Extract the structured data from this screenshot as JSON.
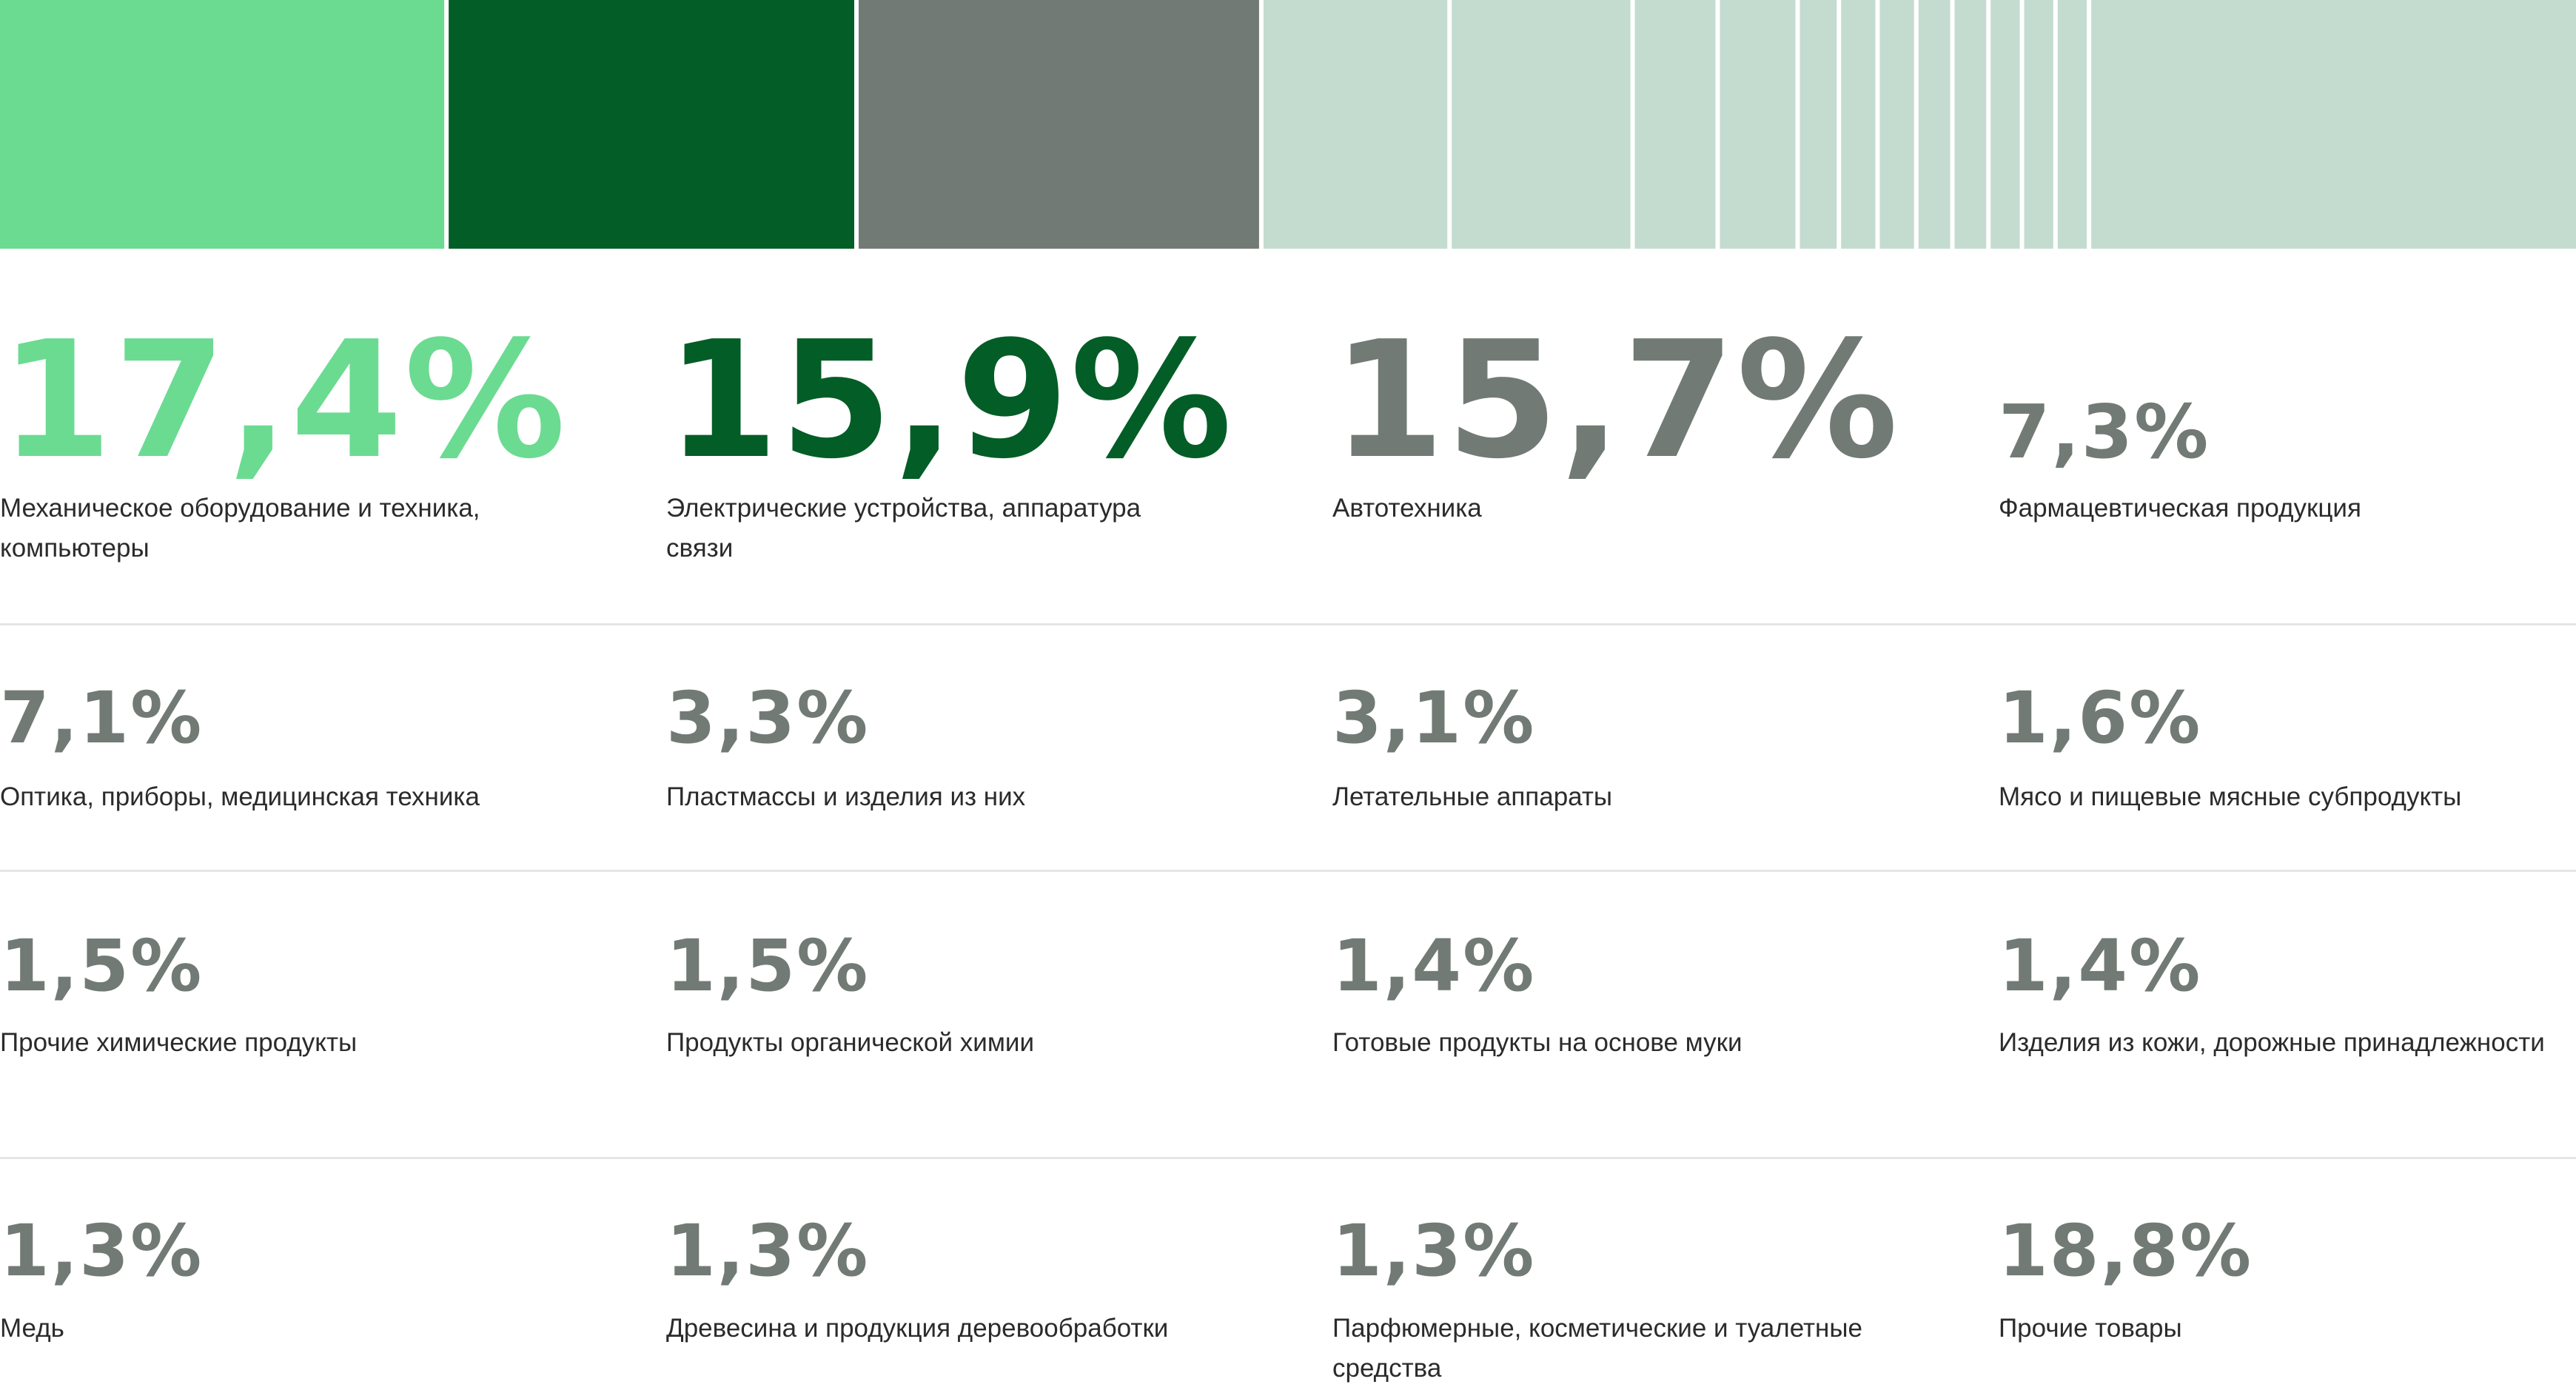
{
  "chart_data": {
    "type": "bar",
    "subtype": "stacked-100-percent-strip",
    "colors": {
      "first": "#6bdb92",
      "second": "#035d26",
      "third": "#727a75",
      "other": "#c4dccf",
      "gap": "#ffffff"
    },
    "items": [
      {
        "value": 17.4,
        "value_label": "17,4%",
        "label": "Механическое оборудование и техника, компьютеры",
        "color": "#6bdb92"
      },
      {
        "value": 15.9,
        "value_label": "15,9%",
        "label": "Электрические устройства, аппаратура связи",
        "color": "#035d26"
      },
      {
        "value": 15.7,
        "value_label": "15,7%",
        "label": "Автотехника",
        "color": "#727a75"
      },
      {
        "value": 7.3,
        "value_label": "7,3%",
        "label": "Фармацевтическая продукция",
        "color": "#727a75"
      },
      {
        "value": 7.1,
        "value_label": "7,1%",
        "label": "Оптика, приборы, медицинская техника",
        "color": "#727a75"
      },
      {
        "value": 3.3,
        "value_label": "3,3%",
        "label": "Пластмассы и изделия из них",
        "color": "#727a75"
      },
      {
        "value": 3.1,
        "value_label": "3,1%",
        "label": "Летательные аппараты",
        "color": "#727a75"
      },
      {
        "value": 1.6,
        "value_label": "1,6%",
        "label": "Мясо и пищевые мясные субпродукты",
        "color": "#727a75"
      },
      {
        "value": 1.5,
        "value_label": "1,5%",
        "label": "Прочие химические продукты",
        "color": "#727a75"
      },
      {
        "value": 1.5,
        "value_label": "1,5%",
        "label": "Продукты органической химии",
        "color": "#727a75"
      },
      {
        "value": 1.4,
        "value_label": "1,4%",
        "label": "Готовые продукты на основе муки",
        "color": "#727a75"
      },
      {
        "value": 1.4,
        "value_label": "1,4%",
        "label": "Изделия из кожи, дорожные принадлежности",
        "color": "#727a75"
      },
      {
        "value": 1.3,
        "value_label": "1,3%",
        "label": "Медь",
        "color": "#727a75"
      },
      {
        "value": 1.3,
        "value_label": "1,3%",
        "label": "Древесина и продукция деревообработки",
        "color": "#727a75"
      },
      {
        "value": 1.3,
        "value_label": "1,3%",
        "label": "Парфюмерные, косметические и туалетные средства",
        "color": "#727a75"
      },
      {
        "value": 18.8,
        "value_label": "18,8%",
        "label": "Прочие товары",
        "color": "#727a75"
      }
    ]
  }
}
